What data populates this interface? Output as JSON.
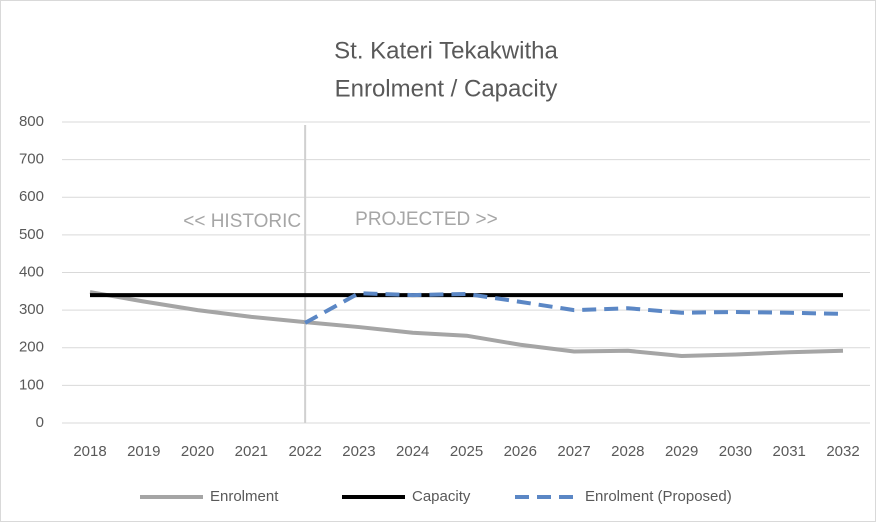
{
  "chart_data": {
    "type": "line",
    "title": [
      "St. Kateri Tekakwitha",
      "Enrolment / Capacity"
    ],
    "categories": [
      "2018",
      "2019",
      "2020",
      "2021",
      "2022",
      "2023",
      "2024",
      "2025",
      "2026",
      "2027",
      "2028",
      "2029",
      "2030",
      "2031",
      "2032"
    ],
    "series": [
      {
        "name": "Enrolment",
        "color": "#a5a5a5",
        "dash": false,
        "values": [
          348,
          323,
          300,
          282,
          268,
          255,
          240,
          232,
          208,
          190,
          192,
          178,
          182,
          188,
          192
        ]
      },
      {
        "name": "Capacity",
        "color": "#000000",
        "dash": false,
        "values": [
          340,
          340,
          340,
          340,
          340,
          340,
          340,
          340,
          340,
          340,
          340,
          340,
          340,
          340,
          340
        ]
      },
      {
        "name": "Enrolment (Proposed)",
        "color": "#5b87c5",
        "dash": true,
        "values": [
          null,
          null,
          null,
          null,
          266,
          345,
          340,
          343,
          322,
          300,
          305,
          293,
          295,
          293,
          290
        ]
      }
    ],
    "annotations": [
      "<< HISTORIC",
      "PROJECTED >>"
    ],
    "divider": "2022",
    "ylim": [
      0,
      800
    ],
    "yticks": [
      0,
      100,
      200,
      300,
      400,
      500,
      600,
      700,
      800
    ],
    "grid": true,
    "legend": "bottom"
  }
}
